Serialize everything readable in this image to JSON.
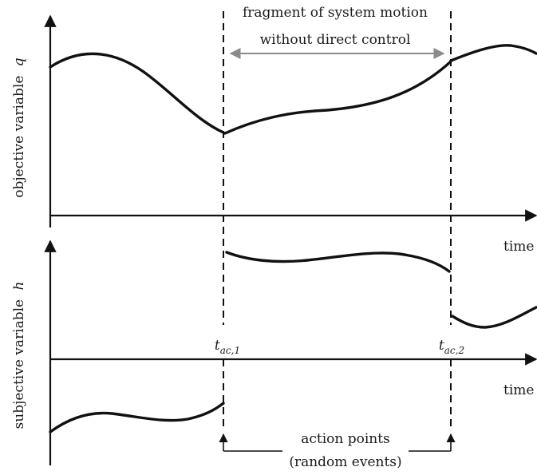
{
  "top_panel": {
    "y_label": "objective variable",
    "y_symbol": "q",
    "x_label": "time"
  },
  "bottom_panel": {
    "y_label": "subjective variable",
    "y_symbol": "h",
    "x_label": "time"
  },
  "fragment": {
    "line1": "fragment of system motion",
    "line2": "without direct control"
  },
  "action_points": {
    "t1": {
      "base": "t",
      "sub": "ac,1"
    },
    "t2": {
      "base": "t",
      "sub": "ac,2"
    },
    "line1": "action points",
    "line2": "(random events)"
  }
}
